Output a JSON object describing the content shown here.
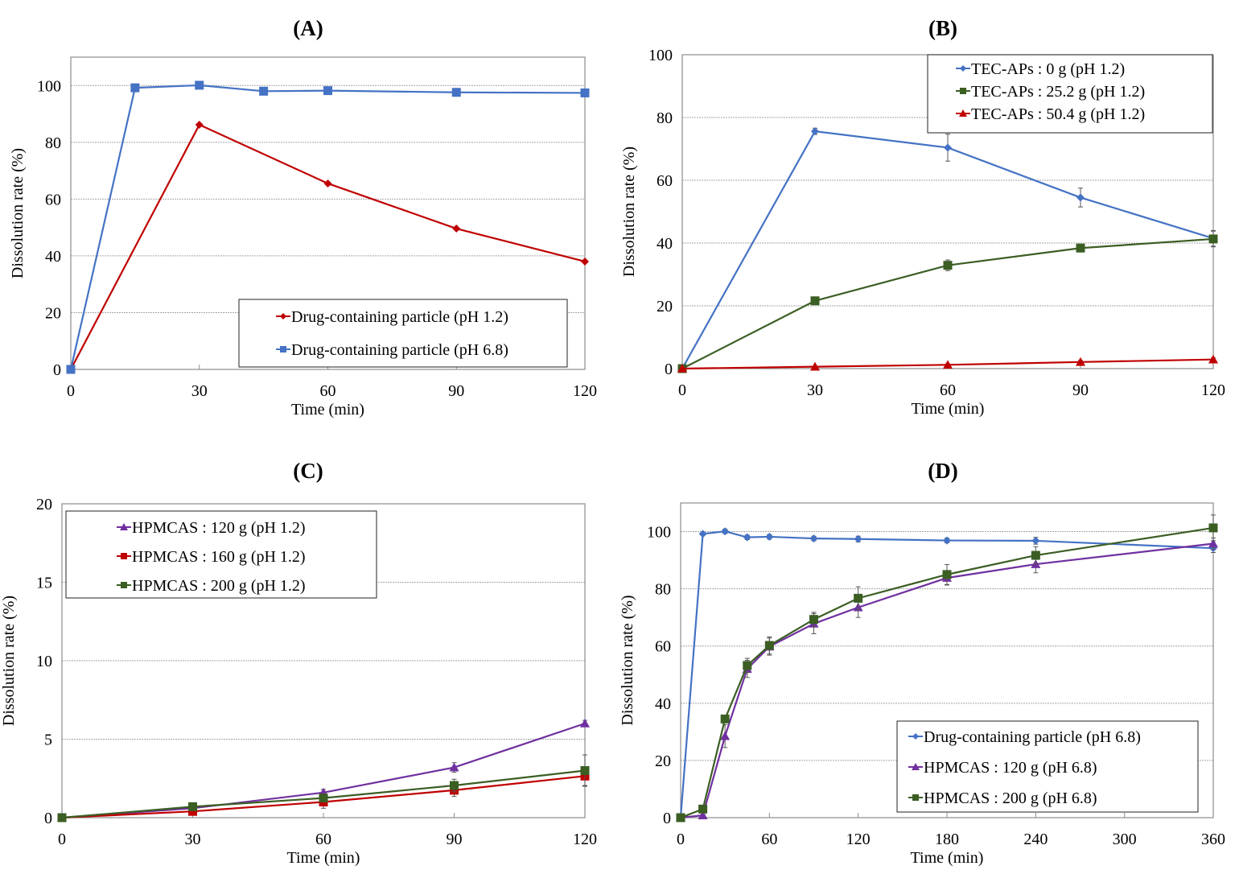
{
  "colors": {
    "blue": "#4472C4",
    "red": "#C00000",
    "green": "#3B5E23",
    "purple": "#7030A0",
    "grid": "#a6a6a6",
    "frame": "#8c8c8c"
  },
  "chart_data": [
    {
      "id": "A",
      "type": "line",
      "title": "(A)",
      "xlabel": "Time (min)",
      "ylabel": "Dissolution rate (%)",
      "xlim": [
        0,
        120
      ],
      "ylim": [
        0,
        110
      ],
      "xticks": [
        0,
        30,
        60,
        90,
        120
      ],
      "yticks": [
        0,
        20,
        40,
        60,
        80,
        100
      ],
      "grid": "horizontal",
      "legend_position": "bottom-right",
      "series": [
        {
          "name": "Drug-containing particle (pH 1.2)",
          "color": "red",
          "marker": "diamond",
          "x": [
            0,
            30,
            60,
            90,
            120
          ],
          "y": [
            0,
            86.2,
            65.5,
            49.6,
            38.0
          ]
        },
        {
          "name": "Drug-containing particle (pH 6.8)",
          "color": "blue",
          "marker": "square",
          "x": [
            0,
            15,
            30,
            45,
            60,
            90,
            120
          ],
          "y": [
            0,
            99.2,
            100.1,
            98.0,
            98.2,
            97.6,
            97.4
          ]
        }
      ]
    },
    {
      "id": "B",
      "type": "line",
      "title": "(B)",
      "xlabel": "Time (min)",
      "ylabel": "Dissolution rate (%)",
      "xlim": [
        0,
        120
      ],
      "ylim": [
        0,
        100
      ],
      "xticks": [
        0,
        30,
        60,
        90,
        120
      ],
      "yticks": [
        0,
        20,
        40,
        60,
        80,
        100
      ],
      "grid": "horizontal",
      "legend_position": "top-right",
      "series": [
        {
          "name": "TEC-APs : 0 g (pH 1.2)",
          "color": "blue",
          "marker": "diamond",
          "x": [
            0,
            30,
            60,
            90,
            120
          ],
          "y": [
            0,
            75.6,
            70.4,
            54.5,
            41.5
          ],
          "err": [
            0,
            1.0,
            4.3,
            3.0,
            2.5
          ]
        },
        {
          "name": "TEC-APs : 25.2 g (pH 1.2)",
          "color": "green",
          "marker": "square",
          "x": [
            0,
            30,
            60,
            90,
            120
          ],
          "y": [
            0,
            21.6,
            32.9,
            38.4,
            41.3
          ],
          "err": [
            0,
            0.6,
            1.7,
            0.8,
            2.5
          ]
        },
        {
          "name": "TEC-APs : 50.4 g (pH 1.2)",
          "color": "red",
          "marker": "triangle",
          "x": [
            0,
            30,
            60,
            90,
            120
          ],
          "y": [
            0,
            0.6,
            1.2,
            2.1,
            2.9
          ],
          "err": [
            0,
            0.2,
            0.3,
            0.5,
            0.5
          ]
        }
      ]
    },
    {
      "id": "C",
      "type": "line",
      "title": "(C)",
      "xlabel": "Time (min)",
      "ylabel": "Dissolution rate (%)",
      "xlim": [
        0,
        120
      ],
      "ylim": [
        0,
        20
      ],
      "xticks": [
        0,
        30,
        60,
        90,
        120
      ],
      "yticks": [
        0,
        5,
        10,
        15,
        20
      ],
      "grid": "horizontal",
      "legend_position": "top-left",
      "series": [
        {
          "name": "HPMCAS : 120 g (pH 1.2)",
          "color": "purple",
          "marker": "triangle",
          "x": [
            0,
            30,
            60,
            90,
            120
          ],
          "y": [
            0,
            0.6,
            1.6,
            3.2,
            6.0
          ],
          "err": [
            0,
            0.1,
            0.2,
            0.3,
            0.2
          ]
        },
        {
          "name": "HPMCAS : 160 g (pH 1.2)",
          "color": "red",
          "marker": "square",
          "x": [
            0,
            30,
            60,
            90,
            120
          ],
          "y": [
            0,
            0.4,
            1.0,
            1.75,
            2.65
          ],
          "err": [
            0,
            0.1,
            0.4,
            0.4,
            0.6
          ]
        },
        {
          "name": "HPMCAS : 200 g (pH 1.2)",
          "color": "green",
          "marker": "square",
          "x": [
            0,
            30,
            60,
            90,
            120
          ],
          "y": [
            0,
            0.7,
            1.25,
            2.05,
            3.0
          ],
          "err": [
            0,
            0.1,
            0.2,
            0.4,
            1.0
          ]
        }
      ]
    },
    {
      "id": "D",
      "type": "line",
      "title": "(D)",
      "xlabel": "Time (min)",
      "ylabel": "Dissolution rate (%)",
      "xlim": [
        0,
        360
      ],
      "ylim": [
        0,
        110
      ],
      "xticks": [
        0,
        60,
        120,
        180,
        240,
        300,
        360
      ],
      "yticks": [
        0,
        20,
        40,
        60,
        80,
        100
      ],
      "grid": "horizontal",
      "legend_position": "bottom-right",
      "series": [
        {
          "name": "Drug-containing particle (pH 6.8)",
          "color": "blue",
          "marker": "diamond",
          "x": [
            0,
            15,
            30,
            45,
            60,
            90,
            120,
            180,
            240,
            360
          ],
          "y": [
            0,
            99.2,
            100.1,
            98.0,
            98.2,
            97.6,
            97.4,
            96.9,
            96.8,
            94.2
          ],
          "err": [
            0,
            0.5,
            0.8,
            0.8,
            0.8,
            0.8,
            1.0,
            0.8,
            1.2,
            1.5
          ]
        },
        {
          "name": "HPMCAS : 120 g (pH 6.8)",
          "color": "purple",
          "marker": "triangle",
          "x": [
            0,
            15,
            30,
            45,
            60,
            90,
            120,
            180,
            240,
            360
          ],
          "y": [
            0,
            0.8,
            28.5,
            52.0,
            59.8,
            67.8,
            73.5,
            83.8,
            88.6,
            95.8
          ],
          "err": [
            0,
            0.3,
            4.0,
            3.0,
            3.0,
            3.5,
            3.5,
            2.5,
            3.0,
            2.0
          ]
        },
        {
          "name": "HPMCAS : 200 g (pH 6.8)",
          "color": "green",
          "marker": "square",
          "x": [
            0,
            15,
            30,
            45,
            60,
            90,
            120,
            180,
            240,
            360
          ],
          "y": [
            0,
            3.0,
            34.5,
            53.2,
            60.2,
            69.3,
            76.7,
            85.0,
            91.7,
            101.3
          ],
          "err": [
            0,
            0.5,
            1.0,
            2.5,
            3.0,
            2.5,
            4.0,
            3.5,
            3.0,
            4.5
          ]
        }
      ]
    }
  ]
}
